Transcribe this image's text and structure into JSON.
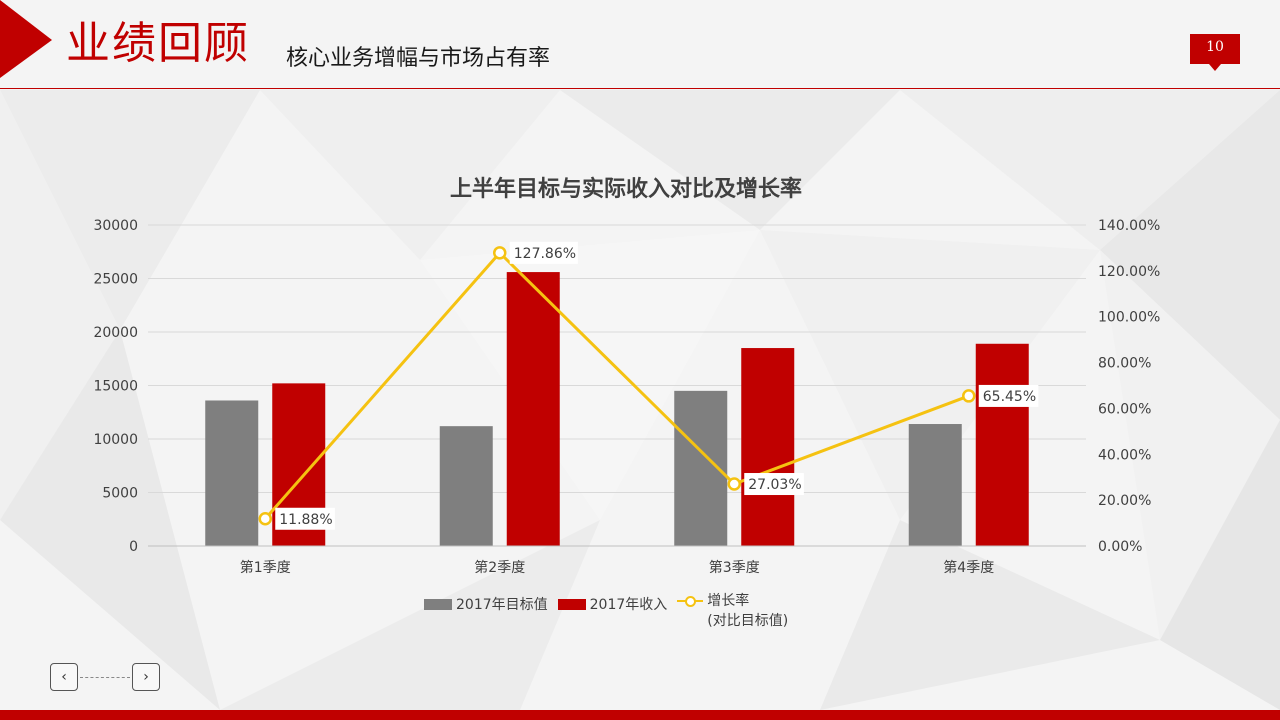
{
  "header": {
    "title": "业绩回顾",
    "subtitle": "核心业务增幅与市场占有率",
    "page_number": "10"
  },
  "colors": {
    "accent": "#c00000",
    "target_bar": "#7f7f7f",
    "revenue_bar": "#c00000",
    "growth_line": "#f5c211"
  },
  "legend": {
    "target": "2017年目标值",
    "revenue": "2017年收入",
    "growth": "增长率\n(对比目标值)"
  },
  "nav": {
    "prev_icon": "chevron-left-icon",
    "next_icon": "chevron-right-icon"
  },
  "chart_data": {
    "type": "bar",
    "title": "上半年目标与实际收入对比及增长率",
    "categories": [
      "第1季度",
      "第2季度",
      "第3季度",
      "第4季度"
    ],
    "series": [
      {
        "name": "2017年目标值",
        "type": "bar",
        "axis": "left",
        "values": [
          13600,
          11200,
          14500,
          11400
        ]
      },
      {
        "name": "2017年收入",
        "type": "bar",
        "axis": "left",
        "values": [
          15200,
          25600,
          18500,
          18900
        ]
      },
      {
        "name": "增长率(对比目标值)",
        "type": "line",
        "axis": "right",
        "values": [
          11.88,
          127.86,
          27.03,
          65.45
        ],
        "labels": [
          "11.88%",
          "127.86%",
          "27.03%",
          "65.45%"
        ]
      }
    ],
    "y_left": {
      "min": 0,
      "max": 30000,
      "ticks": [
        "0",
        "5000",
        "10000",
        "15000",
        "20000",
        "25000",
        "30000"
      ]
    },
    "y_right": {
      "min": 0,
      "max": 140,
      "ticks": [
        "0.00%",
        "20.00%",
        "40.00%",
        "60.00%",
        "80.00%",
        "100.00%",
        "120.00%",
        "140.00%"
      ]
    },
    "grid": true,
    "legend_position": "bottom"
  }
}
